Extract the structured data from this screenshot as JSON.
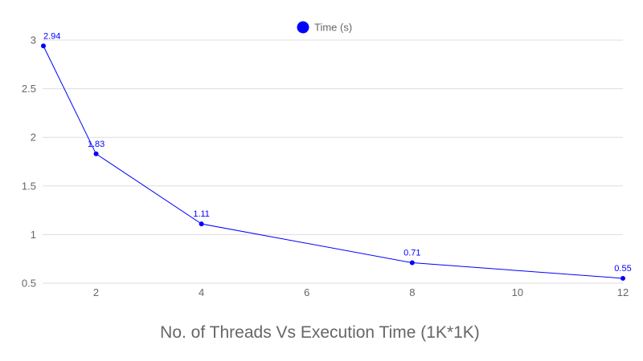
{
  "chart_data": {
    "type": "line",
    "title": "No. of Threads Vs Execution Time (1K*1K)",
    "xlabel": "",
    "ylabel": "",
    "x": [
      1,
      2,
      4,
      8,
      12
    ],
    "xticks": [
      2,
      4,
      6,
      8,
      10,
      12
    ],
    "yticks": [
      0.5,
      1,
      1.5,
      2,
      2.5,
      3
    ],
    "xlim": [
      1,
      12
    ],
    "ylim": [
      0.5,
      3
    ],
    "grid": true,
    "legend_position": "top-center",
    "series": [
      {
        "name": "Time (s)",
        "values": [
          2.94,
          1.83,
          1.11,
          0.71,
          0.55
        ],
        "labels": [
          "2.94",
          "1.83",
          "1.11",
          "0.71",
          "0.55"
        ],
        "color": "#0000ff"
      }
    ]
  },
  "colors": {
    "series": "#0000ff",
    "grid": "#dddddd",
    "text": "#666666"
  }
}
